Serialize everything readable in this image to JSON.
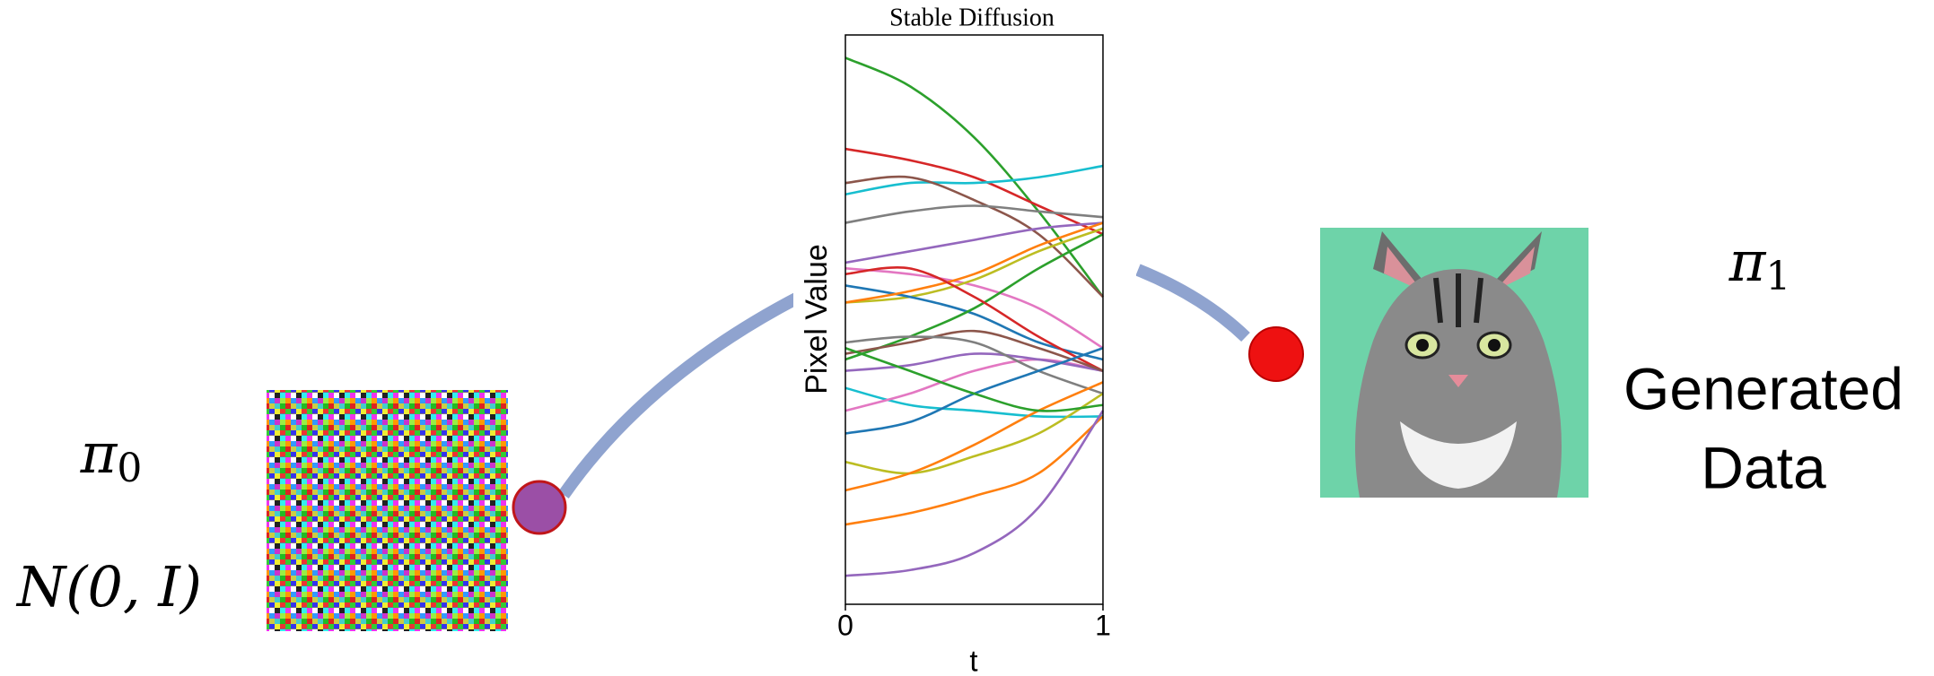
{
  "source": {
    "symbol": "π",
    "subscript": "0",
    "distribution": "N(0, I)"
  },
  "target": {
    "symbol": "π",
    "subscript": "1",
    "lines": [
      "Generated",
      "Data"
    ]
  },
  "chart_data": {
    "type": "line",
    "title": "Stable Diffusion",
    "ylabel": "Pixel Value",
    "xlabel": "t",
    "x": [
      0,
      0.25,
      0.5,
      0.75,
      1
    ],
    "xlim": [
      0,
      1
    ],
    "xticks": [
      0,
      1
    ],
    "ylim": [
      0,
      1
    ],
    "series": [
      {
        "color": "#2ca02c",
        "values": [
          0.96,
          0.91,
          0.82,
          0.69,
          0.54
        ]
      },
      {
        "color": "#d62728",
        "values": [
          0.8,
          0.78,
          0.75,
          0.7,
          0.65
        ]
      },
      {
        "color": "#17becf",
        "values": [
          0.72,
          0.74,
          0.74,
          0.75,
          0.77
        ]
      },
      {
        "color": "#8c564b",
        "values": [
          0.74,
          0.75,
          0.71,
          0.65,
          0.54
        ]
      },
      {
        "color": "#7f7f7f",
        "values": [
          0.67,
          0.69,
          0.7,
          0.69,
          0.68
        ]
      },
      {
        "color": "#9467bd",
        "values": [
          0.6,
          0.62,
          0.64,
          0.66,
          0.67
        ]
      },
      {
        "color": "#e377c2",
        "values": [
          0.59,
          0.58,
          0.56,
          0.52,
          0.45
        ]
      },
      {
        "color": "#bcbd22",
        "values": [
          0.53,
          0.54,
          0.57,
          0.62,
          0.66
        ]
      },
      {
        "color": "#1f77b4",
        "values": [
          0.56,
          0.54,
          0.51,
          0.46,
          0.43
        ]
      },
      {
        "color": "#ff7f0e",
        "values": [
          0.53,
          0.55,
          0.58,
          0.63,
          0.67
        ]
      },
      {
        "color": "#2ca02c",
        "values": [
          0.43,
          0.47,
          0.52,
          0.59,
          0.65
        ]
      },
      {
        "color": "#d62728",
        "values": [
          0.58,
          0.59,
          0.54,
          0.47,
          0.41
        ]
      },
      {
        "color": "#17becf",
        "values": [
          0.38,
          0.35,
          0.34,
          0.33,
          0.33
        ]
      },
      {
        "color": "#e377c2",
        "values": [
          0.34,
          0.37,
          0.41,
          0.43,
          0.41
        ]
      },
      {
        "color": "#9467bd",
        "values": [
          0.41,
          0.42,
          0.44,
          0.43,
          0.41
        ]
      },
      {
        "color": "#8c564b",
        "values": [
          0.44,
          0.46,
          0.48,
          0.45,
          0.41
        ]
      },
      {
        "color": "#7f7f7f",
        "values": [
          0.46,
          0.47,
          0.46,
          0.41,
          0.37
        ]
      },
      {
        "color": "#bcbd22",
        "values": [
          0.25,
          0.23,
          0.26,
          0.3,
          0.37
        ]
      },
      {
        "color": "#1f77b4",
        "values": [
          0.3,
          0.32,
          0.37,
          0.41,
          0.45
        ]
      },
      {
        "color": "#ff7f0e",
        "values": [
          0.14,
          0.16,
          0.19,
          0.23,
          0.33
        ]
      },
      {
        "color": "#9467bd",
        "values": [
          0.05,
          0.06,
          0.09,
          0.17,
          0.34
        ]
      },
      {
        "color": "#ff7f0e",
        "values": [
          0.2,
          0.23,
          0.28,
          0.34,
          0.39
        ]
      },
      {
        "color": "#2ca02c",
        "values": [
          0.45,
          0.41,
          0.37,
          0.34,
          0.35
        ]
      }
    ]
  }
}
